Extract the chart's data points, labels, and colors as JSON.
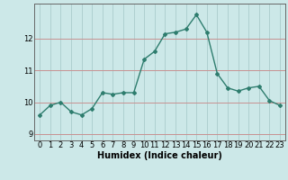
{
  "x": [
    0,
    1,
    2,
    3,
    4,
    5,
    6,
    7,
    8,
    9,
    10,
    11,
    12,
    13,
    14,
    15,
    16,
    17,
    18,
    19,
    20,
    21,
    22,
    23
  ],
  "y": [
    9.6,
    9.9,
    10.0,
    9.7,
    9.6,
    9.8,
    10.3,
    10.25,
    10.3,
    10.3,
    11.35,
    11.6,
    12.15,
    12.2,
    12.3,
    12.75,
    12.2,
    10.9,
    10.45,
    10.35,
    10.45,
    10.5,
    10.05,
    9.9
  ],
  "line_color": "#2e7d6e",
  "marker": "D",
  "marker_size": 2.0,
  "linewidth": 1.0,
  "xlabel": "Humidex (Indice chaleur)",
  "xlabel_fontsize": 7,
  "yticks": [
    9,
    10,
    11,
    12
  ],
  "xticks": [
    0,
    1,
    2,
    3,
    4,
    5,
    6,
    7,
    8,
    9,
    10,
    11,
    12,
    13,
    14,
    15,
    16,
    17,
    18,
    19,
    20,
    21,
    22,
    23
  ],
  "xlim": [
    -0.5,
    23.5
  ],
  "ylim": [
    8.8,
    13.1
  ],
  "bg_color": "#cce8e8",
  "grid_color": "#aacccc",
  "tick_fontsize": 6
}
